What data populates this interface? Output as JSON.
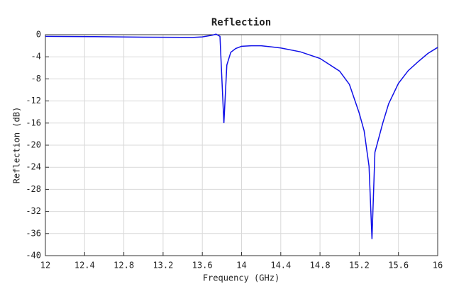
{
  "chart_data": {
    "type": "line",
    "title": "Reflection",
    "x_label": "Frequency (GHz)",
    "y_label": "Reflection (dB)",
    "xlim": [
      12,
      16
    ],
    "xticks": [
      12,
      12.4,
      12.8,
      13.2,
      13.6,
      14,
      14.4,
      14.8,
      15.2,
      15.6,
      16
    ],
    "ylim": [
      -40,
      0
    ],
    "yticks": [
      0,
      -4,
      -8,
      -12,
      -16,
      -20,
      -24,
      -28,
      -32,
      -36,
      -40
    ],
    "grid": true,
    "series": [
      {
        "name": "Reflection",
        "color": "#1010e8",
        "x": [
          12,
          12.5,
          13,
          13.5,
          13.6,
          13.7,
          13.74,
          13.78,
          13.82,
          13.85,
          13.89,
          13.94,
          14,
          14.1,
          14.2,
          14.4,
          14.6,
          14.8,
          15,
          15.1,
          15.2,
          15.25,
          15.3,
          15.33,
          15.36,
          15.44,
          15.5,
          15.6,
          15.7,
          15.8,
          15.9,
          16
        ],
        "values": [
          -0.3,
          -0.35,
          -0.45,
          -0.5,
          -0.4,
          -0.1,
          0.1,
          -0.3,
          -16,
          -5.5,
          -3.2,
          -2.5,
          -2.1,
          -2.0,
          -2.0,
          -2.4,
          -3.1,
          -4.3,
          -6.6,
          -9.0,
          -14.2,
          -17.4,
          -23.8,
          -37,
          -21.3,
          -16,
          -12.5,
          -8.8,
          -6.5,
          -4.9,
          -3.4,
          -2.3
        ]
      }
    ]
  }
}
